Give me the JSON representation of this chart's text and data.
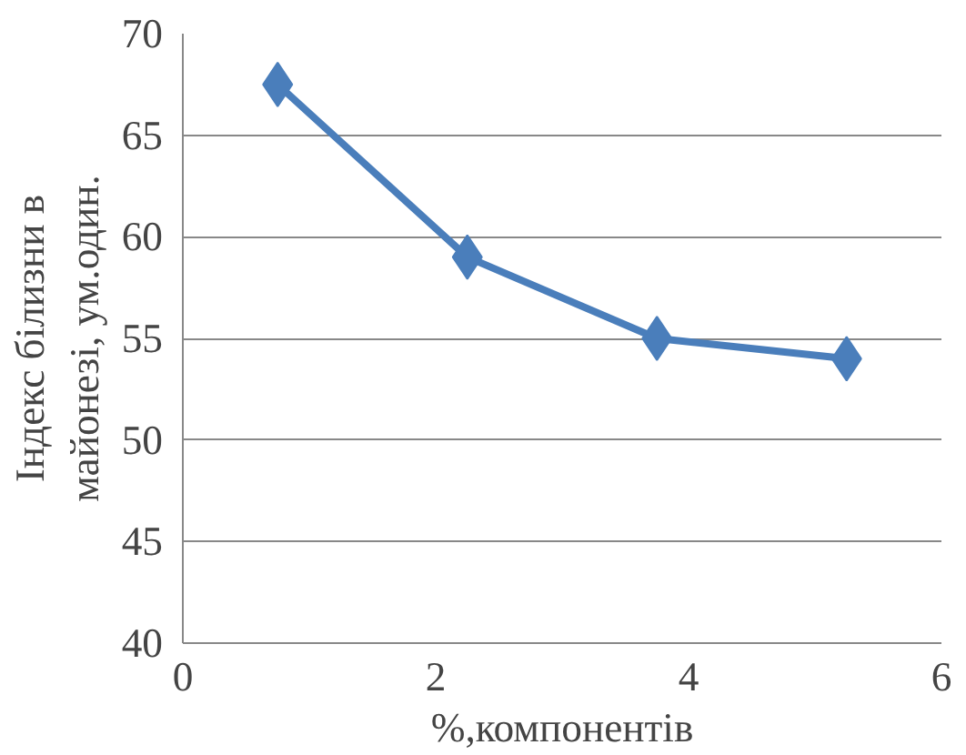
{
  "chart_data": {
    "type": "line",
    "xlabel": "%,компонентів",
    "ylabel": "Індекс білизни в\nмайонезі, ум.один.",
    "x": [
      0.75,
      2.25,
      3.75,
      5.25
    ],
    "series": [
      {
        "color": "#4a7ebb",
        "values": [
          67.5,
          59.0,
          55.0,
          54.0
        ]
      }
    ],
    "xlim": [
      0,
      6
    ],
    "xticks": [
      0,
      2,
      4,
      6
    ],
    "ylim": [
      40,
      70
    ],
    "yticks": [
      40,
      45,
      50,
      55,
      60,
      65,
      70
    ],
    "grid": "y",
    "marker": "diamond",
    "line_style": "solid"
  }
}
